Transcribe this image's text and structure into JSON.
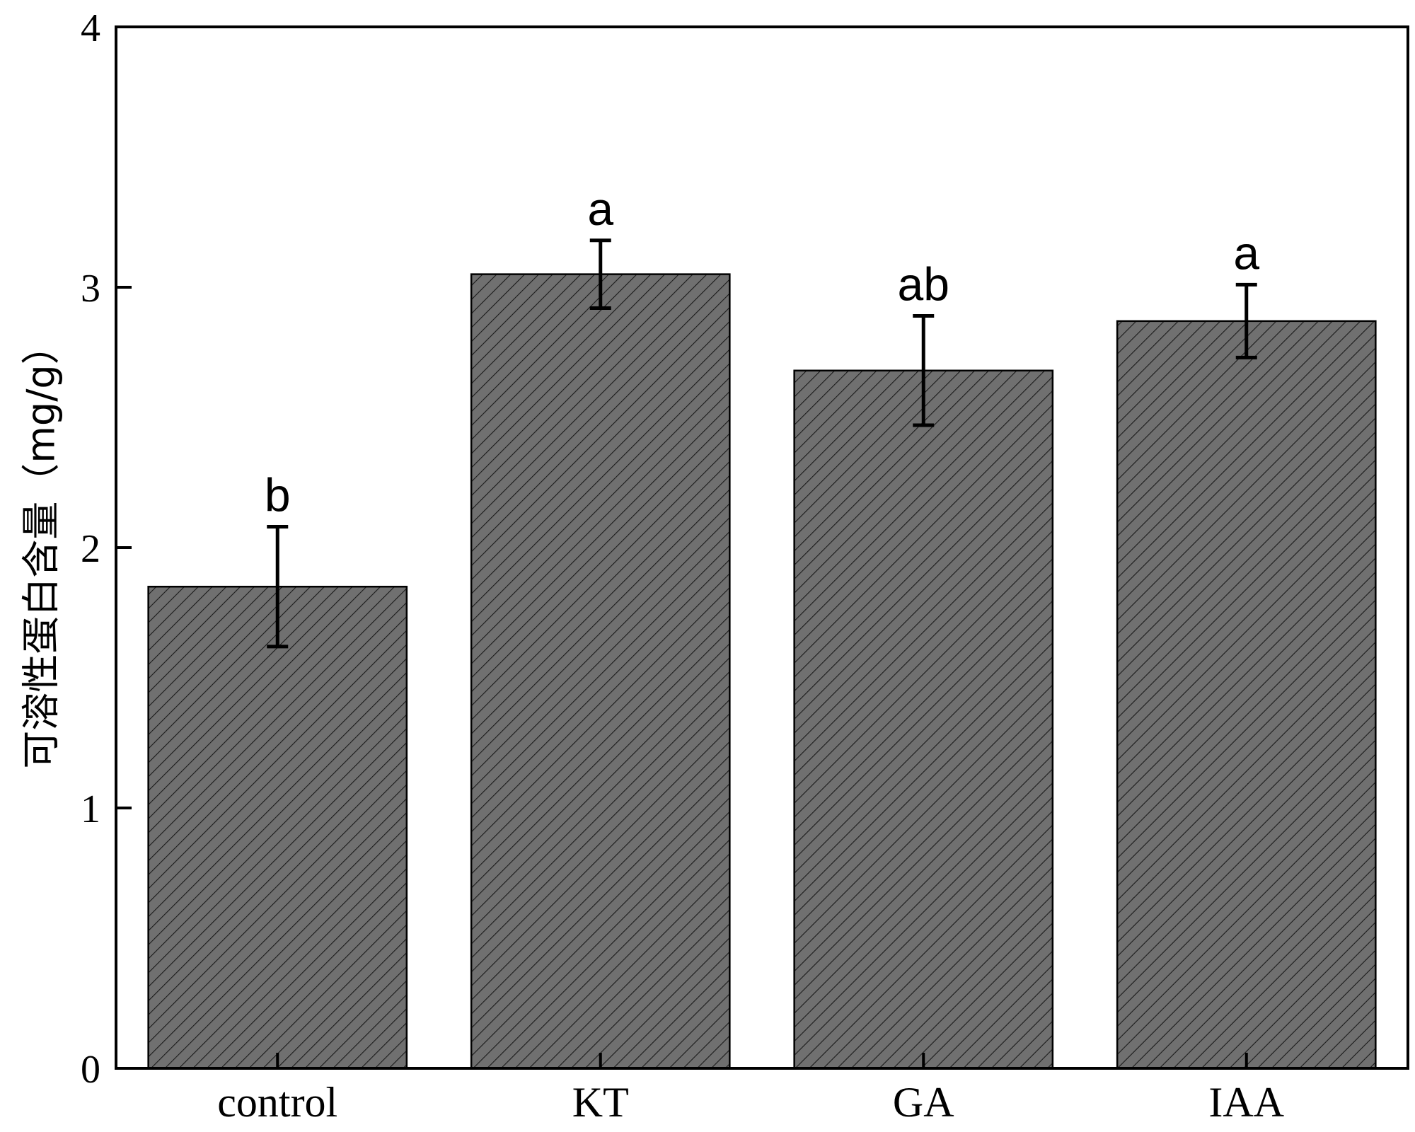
{
  "chart_data": {
    "type": "bar",
    "categories": [
      "control",
      "KT",
      "GA",
      "IAA"
    ],
    "values": [
      1.85,
      3.05,
      2.68,
      2.87
    ],
    "errors": [
      0.23,
      0.13,
      0.21,
      0.14
    ],
    "significance": [
      "b",
      "a",
      "ab",
      "a"
    ],
    "title": "",
    "xlabel": "",
    "ylabel": "可溶性蛋白含量（mg/g）",
    "ylim": [
      0,
      4
    ],
    "yticks": [
      0,
      1,
      2,
      3,
      4
    ],
    "grid": false,
    "legend": "none",
    "bar_color": "#707070",
    "hatch": "diagonal"
  }
}
